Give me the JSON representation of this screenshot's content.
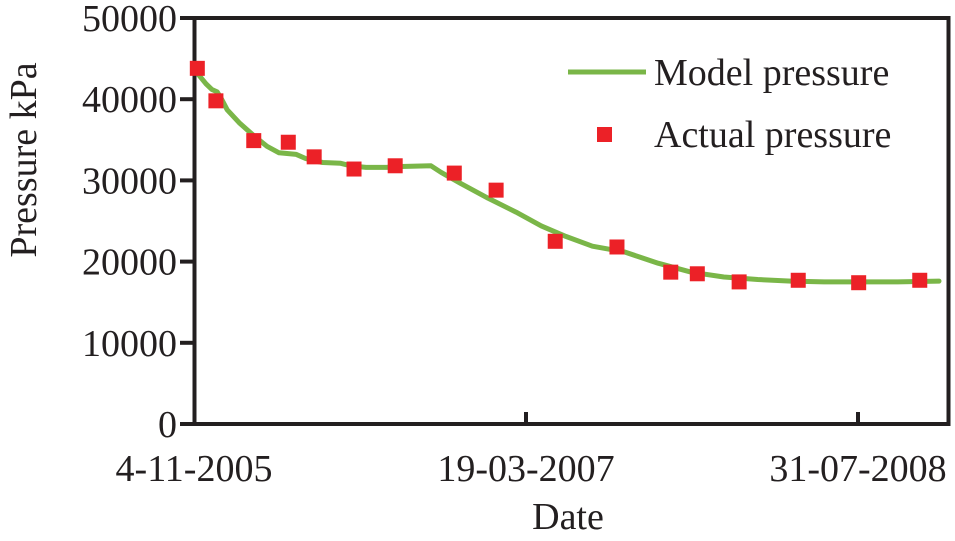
{
  "chart_data": {
    "type": "line",
    "title": "",
    "xlabel": "Date",
    "ylabel": "Pressure kPa",
    "x_axis": {
      "tick_labels": [
        "4-11-2005",
        "19-03-2007",
        "31-07-2008"
      ],
      "tick_days": [
        0,
        500,
        1000
      ],
      "range_days": [
        0,
        1137
      ],
      "grid": false
    },
    "y_axis": {
      "tick_labels": [
        "0",
        "10000",
        "20000",
        "30000",
        "40000",
        "50000"
      ],
      "tick_values": [
        0,
        10000,
        20000,
        30000,
        40000,
        50000
      ],
      "range": [
        0,
        50000
      ],
      "grid": false
    },
    "legend": {
      "position": "top-right-inside",
      "entries": [
        {
          "label": "Model pressure",
          "marker": "line",
          "color": "#7ab648"
        },
        {
          "label": "Actual pressure",
          "marker": "square",
          "color": "#ec2127"
        }
      ]
    },
    "series": [
      {
        "name": "Model pressure",
        "type": "line",
        "color": "#7ab648",
        "points_day_kpa": [
          [
            5,
            43200
          ],
          [
            18,
            41900
          ],
          [
            27,
            41200
          ],
          [
            35,
            40900
          ],
          [
            41,
            40100
          ],
          [
            50,
            38700
          ],
          [
            68,
            37100
          ],
          [
            90,
            35500
          ],
          [
            110,
            34200
          ],
          [
            128,
            33400
          ],
          [
            154,
            33200
          ],
          [
            168,
            32700
          ],
          [
            181,
            32400
          ],
          [
            194,
            32200
          ],
          [
            221,
            32100
          ],
          [
            236,
            31800
          ],
          [
            259,
            31600
          ],
          [
            290,
            31600
          ],
          [
            305,
            31700
          ],
          [
            357,
            31800
          ],
          [
            372,
            31000
          ],
          [
            402,
            29600
          ],
          [
            443,
            27800
          ],
          [
            485,
            26100
          ],
          [
            523,
            24400
          ],
          [
            560,
            23100
          ],
          [
            600,
            21900
          ],
          [
            648,
            21200
          ],
          [
            699,
            19800
          ],
          [
            749,
            18700
          ],
          [
            798,
            18100
          ],
          [
            849,
            17800
          ],
          [
            899,
            17600
          ],
          [
            949,
            17500
          ],
          [
            1000,
            17500
          ],
          [
            1060,
            17500
          ],
          [
            1122,
            17600
          ]
        ]
      },
      {
        "name": "Actual pressure",
        "type": "scatter",
        "color": "#ec2127",
        "points_day_kpa": [
          [
            5,
            43800
          ],
          [
            33,
            39800
          ],
          [
            90,
            34900
          ],
          [
            142,
            34700
          ],
          [
            181,
            32900
          ],
          [
            241,
            31400
          ],
          [
            303,
            31800
          ],
          [
            392,
            30900
          ],
          [
            455,
            28800
          ],
          [
            544,
            22500
          ],
          [
            637,
            21800
          ],
          [
            718,
            18700
          ],
          [
            758,
            18500
          ],
          [
            821,
            17500
          ],
          [
            910,
            17700
          ],
          [
            1001,
            17400
          ],
          [
            1093,
            17700
          ]
        ],
        "approx_dates": [
          "9-11-2005",
          "7-12-2005",
          "2-02-2006",
          "26-03-2006",
          "4-05-2006",
          "3-07-2006",
          "3-09-2006",
          "1-12-2006",
          "2-02-2007",
          "2-05-2007",
          "3-08-2007",
          "23-10-2007",
          "2-12-2007",
          "3-02-2008",
          "2-05-2008",
          "1-08-2008",
          "1-11-2008"
        ]
      }
    ],
    "colors": {
      "axis": "#231f20",
      "text": "#231f20",
      "background": "#ffffff"
    }
  }
}
